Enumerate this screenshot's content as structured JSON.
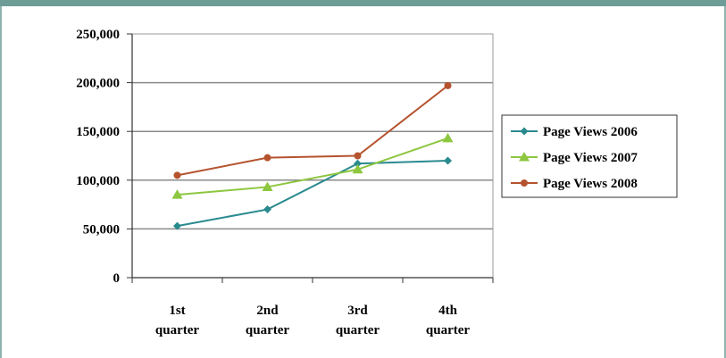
{
  "chart_data": {
    "type": "line",
    "categories": [
      "1st quarter",
      "2nd quarter",
      "3rd quarter",
      "4th quarter"
    ],
    "category_lines": [
      [
        "1st",
        "quarter"
      ],
      [
        "2nd",
        "quarter"
      ],
      [
        "3rd",
        "quarter"
      ],
      [
        "4th",
        "quarter"
      ]
    ],
    "ylim": [
      0,
      250000
    ],
    "yticks": [
      0,
      50000,
      100000,
      150000,
      200000,
      250000
    ],
    "ytick_labels": [
      "0",
      "50,000",
      "100,000",
      "150,000",
      "200,000",
      "250,000"
    ],
    "grid": true,
    "legend_position": "right",
    "series": [
      {
        "name": "Page Views 2006",
        "values": [
          53000,
          70000,
          117000,
          120000
        ],
        "color": "#2a8a8e",
        "marker": "diamond"
      },
      {
        "name": "Page Views 2007",
        "values": [
          85000,
          93000,
          111000,
          143000
        ],
        "color": "#8dc63f",
        "marker": "triangle"
      },
      {
        "name": "Page Views 2008",
        "values": [
          105000,
          123000,
          125000,
          197000
        ],
        "color": "#b5532e",
        "marker": "circle"
      }
    ]
  }
}
